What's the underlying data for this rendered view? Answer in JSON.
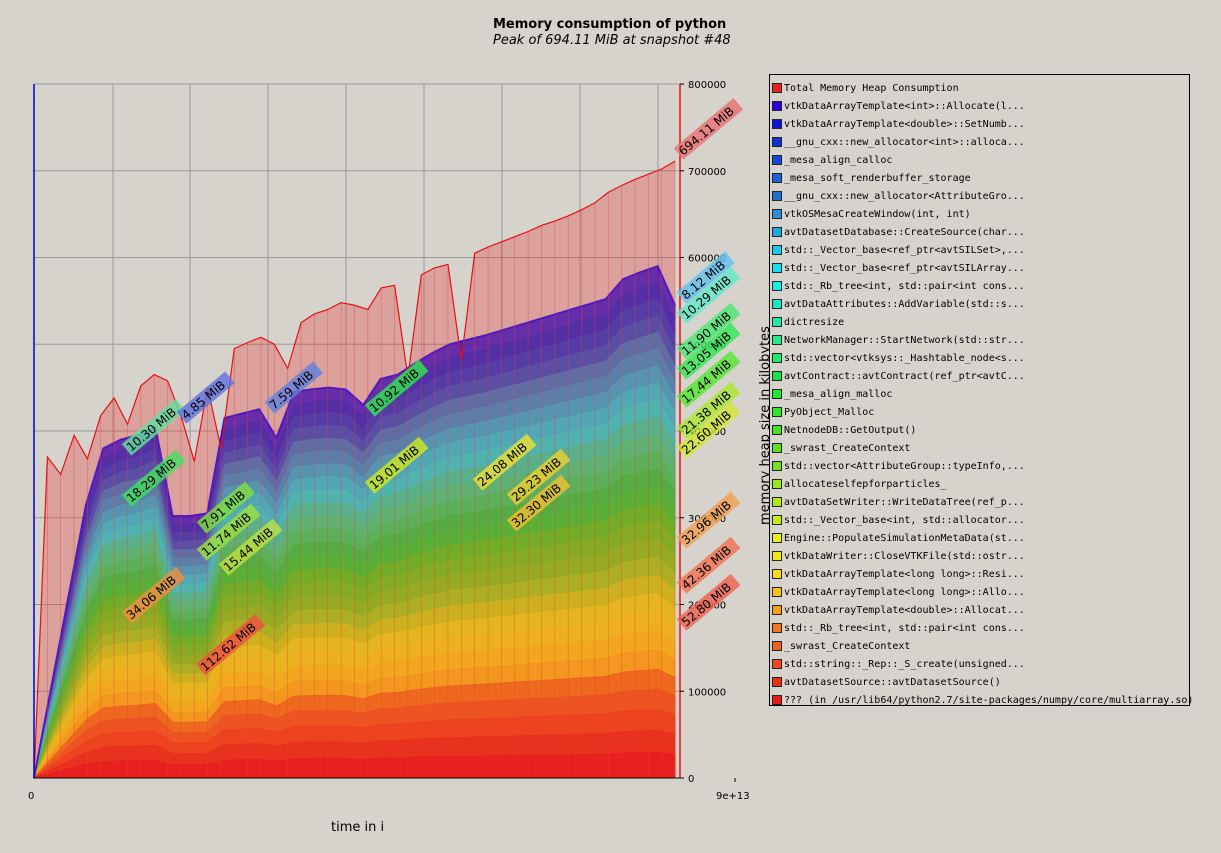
{
  "chart_data": {
    "type": "area",
    "title": "Memory consumption of python",
    "subtitle": "Peak of 694.11 MiB at snapshot #48",
    "xlabel": "time in i",
    "ylabel": "memory heap size in kilobytes",
    "x_ticks": [
      "0",
      "9e+13"
    ],
    "y_ticks": [
      "0",
      "100000",
      "200000",
      "300000",
      "400000",
      "500000",
      "600000",
      "700000",
      "800000"
    ],
    "ylim": [
      0,
      800000
    ],
    "grid": true,
    "legend_position": "right",
    "total": [
      0,
      370000,
      350000,
      395000,
      368000,
      418000,
      438000,
      408000,
      452000,
      465000,
      458000,
      418000,
      365000,
      450000,
      380000,
      495000,
      502000,
      508000,
      500000,
      472000,
      525000,
      535000,
      540000,
      548000,
      545000,
      540000,
      565000,
      568000,
      462000,
      580000,
      588000,
      592000,
      482000,
      605000,
      612000,
      618000,
      624000,
      630000,
      637000,
      642000,
      648000,
      655000,
      663000,
      675000,
      683000,
      690000,
      696000,
      702000,
      711000
    ],
    "stack_top": [
      0,
      105000,
      210000,
      315000,
      380000,
      390000,
      395000,
      405000,
      302000,
      302000,
      305000,
      415000,
      420000,
      425000,
      392000,
      445000,
      448000,
      450000,
      448000,
      430000,
      460000,
      465000,
      478000,
      490000,
      500000,
      505000,
      510000,
      516000,
      522000,
      528000,
      534000,
      540000,
      546000,
      552000,
      575000,
      583000,
      590000,
      545000
    ],
    "layers": 28,
    "annotations": [
      "694.11 MiB",
      "8.12 MiB",
      "10.29 MiB",
      "11.90 MiB",
      "13.05 MiB",
      "17.44 MiB",
      "21.38 MiB",
      "22.60 MiB",
      "32.96 MiB",
      "42.36 MiB",
      "52.80 MiB",
      "10.30 MiB",
      "4.85 MiB",
      "7.59 MiB",
      "10.92 MiB",
      "18.29 MiB",
      "7.91 MiB",
      "11.74 MiB",
      "15.44 MiB",
      "19.01 MiB",
      "24.08 MiB",
      "29.23 MiB",
      "32.30 MiB",
      "34.06 MiB",
      "112.62 MiB"
    ],
    "legend": [
      {
        "label": "Total Memory Heap Consumption",
        "color": "#e8241e"
      },
      {
        "label": "vtkDataArrayTemplate<int>::Allocate(l...",
        "color": "#2a00e0"
      },
      {
        "label": "vtkDataArrayTemplate<double>::SetNumb...",
        "color": "#1010e0"
      },
      {
        "label": "__gnu_cxx::new_allocator<int>::alloca...",
        "color": "#1030d8"
      },
      {
        "label": "_mesa_align_calloc",
        "color": "#1848d8"
      },
      {
        "label": "_mesa_soft_renderbuffer_storage",
        "color": "#2060d8"
      },
      {
        "label": "__gnu_cxx::new_allocator<AttributeGro...",
        "color": "#2070d0"
      },
      {
        "label": "vtkOSMesaCreateWindow(int, int)",
        "color": "#2890d8"
      },
      {
        "label": "avtDatasetDatabase::CreateSource(char...",
        "color": "#20a8e0"
      },
      {
        "label": "std::_Vector_base<ref_ptr<avtSILSet>,...",
        "color": "#18c8e8"
      },
      {
        "label": "std::_Vector_base<ref_ptr<avtSILArray...",
        "color": "#10e0f0"
      },
      {
        "label": "std::_Rb_tree<int, std::pair<int cons...",
        "color": "#10f0e8"
      },
      {
        "label": "avtDataAttributes::AddVariable(std::s...",
        "color": "#18e8c8"
      },
      {
        "label": "dictresize",
        "color": "#20e8a8"
      },
      {
        "label": "NetworkManager::StartNetwork(std::str...",
        "color": "#28e888"
      },
      {
        "label": "std::vector<vtksys::_Hashtable_node<s...",
        "color": "#20e868"
      },
      {
        "label": "avtContract::avtContract(ref_ptr<avtC...",
        "color": "#18e048"
      },
      {
        "label": "_mesa_align_malloc",
        "color": "#20e838"
      },
      {
        "label": "PyObject_Malloc",
        "color": "#30e828"
      },
      {
        "label": "NetnodeDB::GetOutput()",
        "color": "#48e020"
      },
      {
        "label": "_swrast_CreateContext",
        "color": "#60e020"
      },
      {
        "label": "std::vector<AttributeGroup::typeInfo,...",
        "color": "#78e020"
      },
      {
        "label": "allocateselfepforparticles_",
        "color": "#98e820"
      },
      {
        "label": "avtDataSetWriter::WriteDataTree(ref_p...",
        "color": "#b0e818"
      },
      {
        "label": "std::_Vector_base<int, std::allocator...",
        "color": "#c8e818"
      },
      {
        "label": "Engine::PopulateSimulationMetaData(st...",
        "color": "#e8f018"
      },
      {
        "label": "vtkDataWriter::CloseVTKFile(std::ostr...",
        "color": "#f0e818"
      },
      {
        "label": "vtkDataArrayTemplate<long long>::Resi...",
        "color": "#f8d818"
      },
      {
        "label": "vtkDataArrayTemplate<long long>::Allo...",
        "color": "#f8c018"
      },
      {
        "label": "vtkDataArrayTemplate<double>::Allocat...",
        "color": "#f8a018"
      },
      {
        "label": "std::_Rb_tree<int, std::pair<int cons...",
        "color": "#f07818"
      },
      {
        "label": "_swrast_CreateContext",
        "color": "#f06020"
      },
      {
        "label": "std::string::_Rep::_S_create(unsigned...",
        "color": "#f04818"
      },
      {
        "label": "avtDatasetSource::avtDatasetSource()",
        "color": "#e83018"
      },
      {
        "label": "??? (in /usr/lib64/python2.7/site-packages/numpy/core/multiarray.so)",
        "color": "#e81818"
      }
    ]
  }
}
